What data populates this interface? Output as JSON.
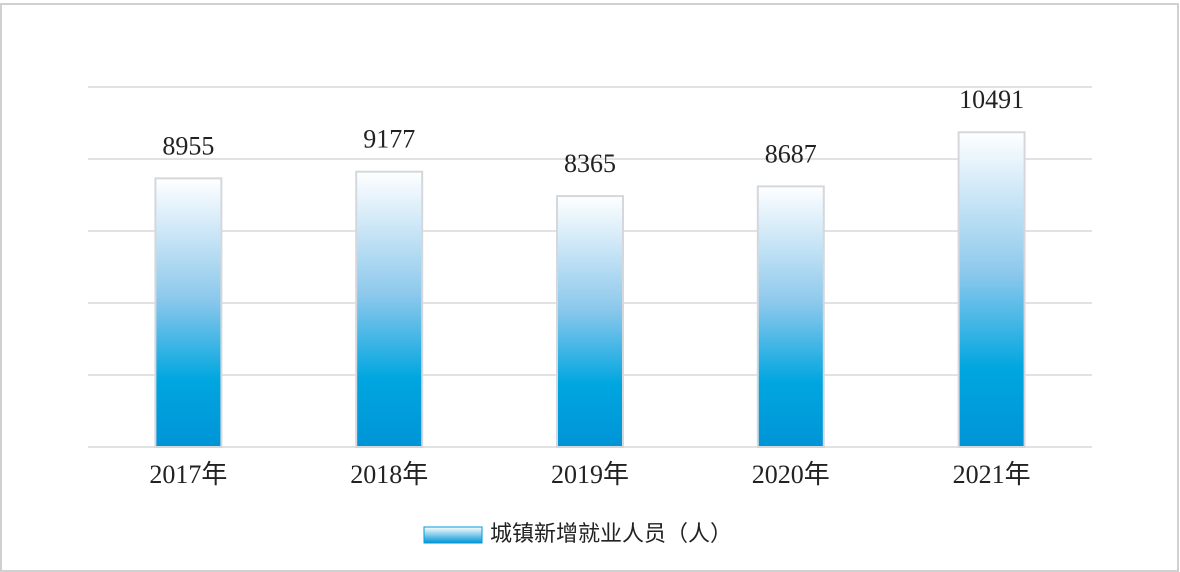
{
  "chart_data": {
    "type": "bar",
    "categories": [
      "2017年",
      "2018年",
      "2019年",
      "2020年",
      "2021年"
    ],
    "series": [
      {
        "name": "城镇新增就业人员（人）",
        "color": "#0099d9",
        "values": [
          8955,
          9177,
          8365,
          8687,
          10491
        ]
      }
    ],
    "ylim": [
      0,
      12000
    ],
    "yticks": [
      0,
      2400,
      4800,
      7200,
      9600,
      12000
    ],
    "grid": true
  }
}
